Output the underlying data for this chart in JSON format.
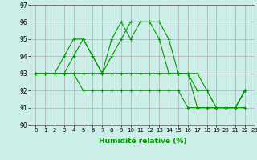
{
  "xlabel": "Humidité relative (%)",
  "xlim": [
    -0.5,
    23
  ],
  "ylim": [
    90,
    97
  ],
  "yticks": [
    90,
    91,
    92,
    93,
    94,
    95,
    96,
    97
  ],
  "xticks": [
    0,
    1,
    2,
    3,
    4,
    5,
    6,
    7,
    8,
    9,
    10,
    11,
    12,
    13,
    14,
    15,
    16,
    17,
    18,
    19,
    20,
    21,
    22,
    23
  ],
  "background_color": "#cceee8",
  "grid_color": "#b0b0b0",
  "line_color": "#009900",
  "series": [
    [
      93,
      93,
      93,
      94,
      95,
      95,
      94,
      93,
      95,
      96,
      95,
      96,
      96,
      96,
      95,
      93,
      93,
      93,
      92,
      91,
      91,
      91,
      92
    ],
    [
      93,
      93,
      93,
      93,
      94,
      95,
      94,
      93,
      94,
      95,
      96,
      96,
      96,
      95,
      93,
      93,
      93,
      91,
      91,
      91,
      91,
      91,
      92
    ],
    [
      93,
      93,
      93,
      93,
      93,
      93,
      93,
      93,
      93,
      93,
      93,
      93,
      93,
      93,
      93,
      93,
      93,
      92,
      92,
      91,
      91,
      91,
      91
    ],
    [
      93,
      93,
      93,
      93,
      93,
      92,
      92,
      92,
      92,
      92,
      92,
      92,
      92,
      92,
      92,
      92,
      91,
      91,
      91,
      91,
      91,
      91,
      92
    ]
  ]
}
